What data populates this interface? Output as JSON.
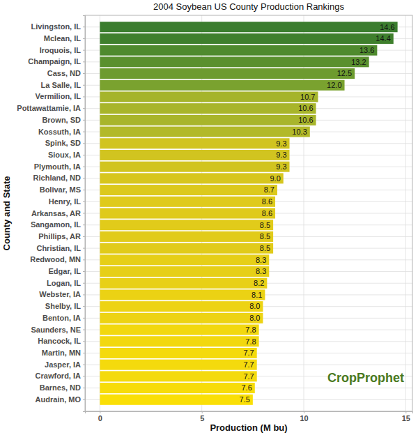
{
  "chart_data": {
    "type": "bar",
    "orientation": "horizontal",
    "title": "2004 Soybean US County Production Rankings",
    "xlabel": "Production (M bu)",
    "ylabel": "County and State",
    "annotations": [
      {
        "text": "CropProphet"
      }
    ],
    "categories": [
      "Livingston, IL",
      "Mclean, IL",
      "Iroquois, IL",
      "Champaign, IL",
      "Cass, ND",
      "La Salle, IL",
      "Vermilion, IL",
      "Pottawattamie, IA",
      "Brown, SD",
      "Kossuth, IA",
      "Spink, SD",
      "Sioux, IA",
      "Plymouth, IA",
      "Richland, ND",
      "Bolivar, MS",
      "Henry, IL",
      "Arkansas, AR",
      "Sangamon, IL",
      "Phillips, AR",
      "Christian, IL",
      "Redwood, MN",
      "Edgar, IL",
      "Logan, IL",
      "Webster, IA",
      "Shelby, IL",
      "Benton, IA",
      "Saunders, NE",
      "Hancock, IL",
      "Martin, MN",
      "Jasper, IA",
      "Crawford, IA",
      "Barnes, ND",
      "Audrain, MO"
    ],
    "values": [
      14.6,
      14.4,
      13.6,
      13.2,
      12.5,
      12.0,
      10.7,
      10.6,
      10.6,
      10.3,
      9.3,
      9.3,
      9.3,
      9.0,
      8.7,
      8.6,
      8.6,
      8.5,
      8.5,
      8.5,
      8.3,
      8.3,
      8.2,
      8.1,
      8.0,
      8.0,
      7.8,
      7.8,
      7.7,
      7.7,
      7.7,
      7.6,
      7.5
    ],
    "value_labels": [
      "14.6",
      "14.4",
      "13.6",
      "13.2",
      "12.5",
      "12.0",
      "10.7",
      "10.6",
      "10.6",
      "10.3",
      "9.3",
      "9.3",
      "9.3",
      "9.0",
      "8.7",
      "8.6",
      "8.6",
      "8.5",
      "8.5",
      "8.5",
      "8.3",
      "8.3",
      "8.2",
      "8.1",
      "8.0",
      "8.0",
      "7.8",
      "7.8",
      "7.7",
      "7.7",
      "7.7",
      "7.6",
      "7.5"
    ],
    "colors": [
      "#3b7d2e",
      "#3f7f2d",
      "#4f8a2e",
      "#5a902e",
      "#6d9b2f",
      "#7aa22f",
      "#a5b42b",
      "#a8b52b",
      "#a8b52b",
      "#b2b929",
      "#d1c420",
      "#d1c420",
      "#d1c420",
      "#d7c61e",
      "#dcc91c",
      "#dfca1b",
      "#dfca1b",
      "#e1cb1a",
      "#e1cb1a",
      "#e1cb1a",
      "#e6cf17",
      "#e6cf17",
      "#e8d016",
      "#ebd214",
      "#edd313",
      "#edd313",
      "#f2d80f",
      "#f2d80f",
      "#f4da0d",
      "#f4da0d",
      "#f4da0d",
      "#f7dc0a",
      "#fadf07"
    ],
    "data_labels": true,
    "grid": true,
    "xlim": [
      -0.73,
      15.33
    ],
    "xticks": [
      0,
      5,
      10,
      15
    ]
  }
}
